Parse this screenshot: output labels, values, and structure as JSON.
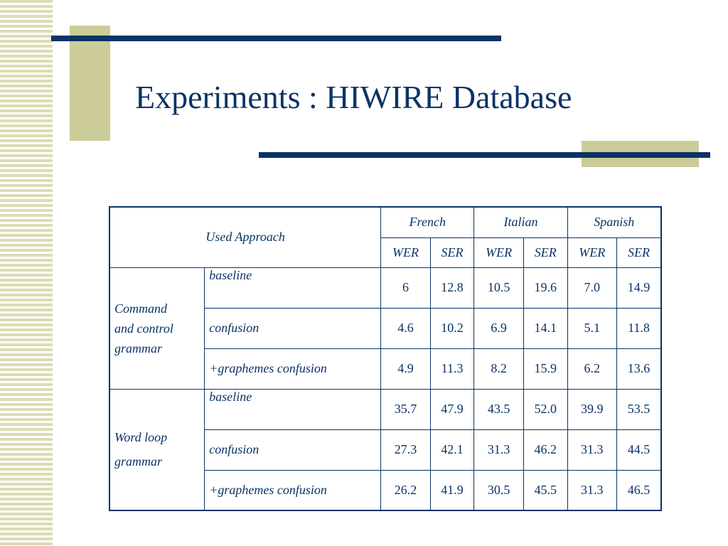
{
  "slide": {
    "title": "Experiments : HIWIRE Database"
  },
  "table": {
    "corner_header": "Used Approach",
    "languages": [
      "French",
      "Italian",
      "Spanish"
    ],
    "metrics": [
      "WER",
      "SER",
      "WER",
      "SER",
      "WER",
      "SER"
    ],
    "groups": [
      {
        "label_lines": [
          "Command",
          "and control",
          "grammar"
        ],
        "rows": [
          {
            "approach": "baseline",
            "values": [
              "6",
              "12.8",
              "10.5",
              "19.6",
              "7.0",
              "14.9"
            ],
            "bold": [
              false,
              false,
              false,
              false,
              false,
              false
            ]
          },
          {
            "approach": "confusion",
            "values": [
              "4.6",
              "10.2",
              "6.9",
              "14.1",
              "5.1",
              "11.8"
            ],
            "bold": [
              true,
              true,
              true,
              true,
              true,
              true
            ]
          },
          {
            "approach": "+graphemes confusion",
            "values": [
              "4.9",
              "11.3",
              "8.2",
              "15.9",
              "6.2",
              "13.6"
            ],
            "bold": [
              false,
              false,
              false,
              false,
              false,
              false
            ]
          }
        ]
      },
      {
        "label_lines": [
          "Word loop",
          "grammar"
        ],
        "rows": [
          {
            "approach": "baseline",
            "values": [
              "35.7",
              "47.9",
              "43.5",
              "52.0",
              "39.9",
              "53.5"
            ],
            "bold": [
              false,
              false,
              false,
              false,
              false,
              false
            ]
          },
          {
            "approach": "confusion",
            "values": [
              "27.3",
              "42.1",
              "31.3",
              "46.2",
              "31.3",
              "44.5"
            ],
            "bold": [
              false,
              false,
              false,
              false,
              true,
              true
            ]
          },
          {
            "approach": "+graphemes confusion",
            "values": [
              "26.2",
              "41.9",
              "30.5",
              "45.5",
              "31.3",
              "46.5"
            ],
            "bold": [
              true,
              true,
              true,
              true,
              true,
              false
            ]
          }
        ]
      }
    ]
  },
  "colors": {
    "text": "#0b3366",
    "accent_olive": "#cccc99",
    "stripe": "#dcdcb4"
  }
}
